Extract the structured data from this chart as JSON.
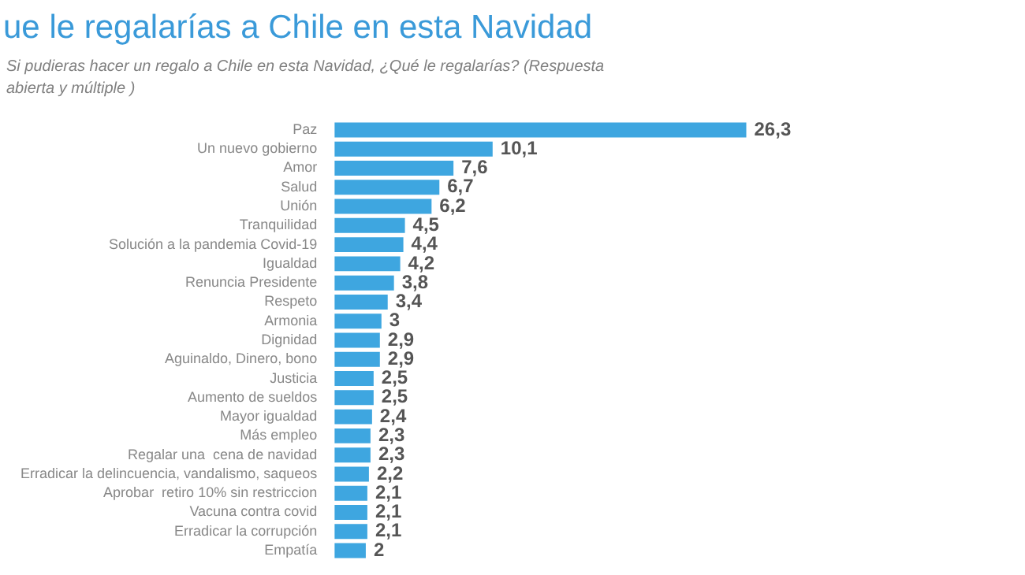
{
  "chart_data": {
    "type": "bar",
    "orientation": "horizontal",
    "title": "ue le regalarías a Chile en esta Navidad",
    "subtitle": "Si pudieras hacer un regalo a Chile en esta Navidad, ¿Qué le regalarías? (Respuesta abierta y múltiple )",
    "categories": [
      "Paz",
      "Un nuevo gobierno",
      "Amor",
      "Salud",
      "Unión",
      "Tranquilidad",
      "Solución a la pandemia Covid-19",
      "Igualdad",
      "Renuncia Presidente",
      "Respeto",
      "Armonia",
      "Dignidad",
      "Aguinaldo, Dinero, bono",
      "Justicia",
      "Aumento de sueldos",
      "Mayor igualdad",
      "Más empleo",
      "Regalar una  cena de navidad",
      "Erradicar la delincuencia, vandalismo, saqueos",
      "Aprobar  retiro 10% sin restriccion",
      "Vacuna contra covid",
      "Erradicar la corrupción",
      "Empatía"
    ],
    "values": [
      26.3,
      10.1,
      7.6,
      6.7,
      6.2,
      4.5,
      4.4,
      4.2,
      3.8,
      3.4,
      3,
      2.9,
      2.9,
      2.5,
      2.5,
      2.4,
      2.3,
      2.3,
      2.2,
      2.1,
      2.1,
      2.1,
      2
    ],
    "value_labels": [
      "26,3",
      "10,1",
      "7,6",
      "6,7",
      "6,2",
      "4,5",
      "4,4",
      "4,2",
      "3,8",
      "3,4",
      "3",
      "2,9",
      "2,9",
      "2,5",
      "2,5",
      "2,4",
      "2,3",
      "2,3",
      "2,2",
      "2,1",
      "2,1",
      "2,1",
      "2"
    ],
    "color": "#3ea6e0",
    "tick_labels": "y"
  }
}
